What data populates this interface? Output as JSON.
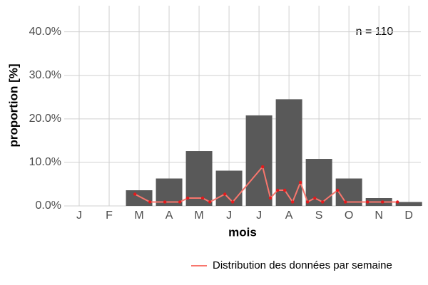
{
  "chart_data": {
    "type": "bar",
    "x_label": "mois",
    "y_label": "proportion [%]",
    "annotation": "n = 110",
    "x": [
      1,
      2,
      3,
      4,
      5,
      6,
      7,
      8,
      9,
      10,
      11,
      12
    ],
    "values": [
      0,
      0,
      3.6,
      6.3,
      12.6,
      8.1,
      20.8,
      24.5,
      10.8,
      6.3,
      1.8,
      0.9
    ],
    "color": "#595959",
    "series": [
      {
        "name": "Distribution des données par semaine",
        "type": "line",
        "color": "#f8766d",
        "point_color": "#e41a1c",
        "x": [
          2.86,
          3.36,
          3.86,
          4.36,
          4.62,
          5.12,
          5.36,
          5.86,
          6.12,
          7.12,
          7.38,
          7.62,
          7.86,
          8.12,
          8.38,
          8.62,
          8.86,
          9.12,
          9.62,
          9.88,
          10.62,
          11.12,
          11.62
        ],
        "values": [
          2.7,
          0.9,
          0.9,
          0.9,
          1.8,
          1.8,
          0.9,
          2.7,
          0.9,
          9.0,
          1.8,
          3.6,
          3.6,
          0.9,
          5.4,
          0.9,
          1.8,
          0.9,
          3.6,
          0.9,
          0.9,
          0.9,
          0.9
        ]
      }
    ],
    "xlim": [
      0.5,
      12.4
    ],
    "ylim": [
      0,
      46
    ],
    "xticks": [
      {
        "value": 1,
        "label": "J"
      },
      {
        "value": 2,
        "label": "F"
      },
      {
        "value": 3,
        "label": "M"
      },
      {
        "value": 4,
        "label": "A"
      },
      {
        "value": 5,
        "label": "M"
      },
      {
        "value": 6,
        "label": "J"
      },
      {
        "value": 7,
        "label": "J"
      },
      {
        "value": 8,
        "label": "A"
      },
      {
        "value": 9,
        "label": "S"
      },
      {
        "value": 10,
        "label": "O"
      },
      {
        "value": 11,
        "label": "N"
      },
      {
        "value": 12,
        "label": "D"
      }
    ],
    "yticks": [
      {
        "value": 0,
        "label": "0.0%"
      },
      {
        "value": 10,
        "label": "10.0%"
      },
      {
        "value": 20,
        "label": "20.0%"
      },
      {
        "value": 30,
        "label": "30.0%"
      },
      {
        "value": 40,
        "label": "40.0%"
      }
    ],
    "grid": true,
    "legend": "bottom-right"
  }
}
